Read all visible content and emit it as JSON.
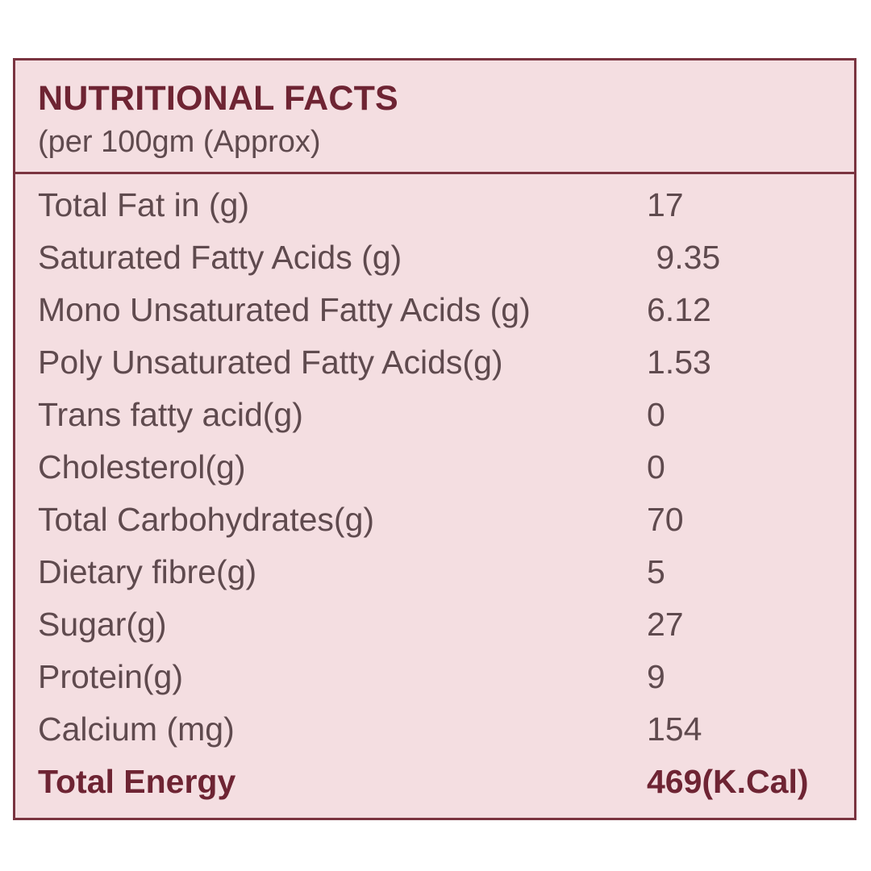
{
  "header": {
    "title": "NUTRITIONAL FACTS",
    "subtitle": "(per 100gm (Approx)"
  },
  "rows": [
    {
      "label": "Total Fat in (g)",
      "value": "17"
    },
    {
      "label": "Saturated Fatty Acids (g)",
      "value": " 9.35"
    },
    {
      "label": "Mono Unsaturated Fatty Acids (g)",
      "value": "6.12"
    },
    {
      "label": "Poly Unsaturated Fatty Acids(g)",
      "value": "1.53"
    },
    {
      "label": "Trans fatty acid(g)",
      "value": "0"
    },
    {
      "label": "Cholesterol(g)",
      "value": "0"
    },
    {
      "label": "Total Carbohydrates(g)",
      "value": "70"
    },
    {
      "label": "Dietary fibre(g)",
      "value": "5"
    },
    {
      "label": "Sugar(g)",
      "value": "27"
    },
    {
      "label": "Protein(g)",
      "value": "9"
    },
    {
      "label": "Calcium (mg)",
      "value": "154"
    }
  ],
  "total": {
    "label": "Total Energy",
    "value": "469(K.Cal)"
  },
  "colors": {
    "border": "#7a3440",
    "background": "#f4dee1",
    "title_text": "#6e2433",
    "body_text": "#5f4a4e"
  }
}
